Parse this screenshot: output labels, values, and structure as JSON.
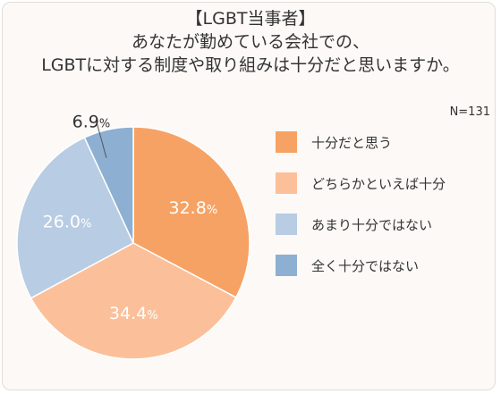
{
  "header": {
    "title_line1": "【LGBT当事者】",
    "title_line2": "あなたが勤めている会社での、",
    "title_line3": "LGBTに対する制度や取り組みは十分だと思いますか。"
  },
  "sample_label": "N=131",
  "colors": {
    "background": "#fcf9f6",
    "text": "#333333",
    "label_on_slice": "#ffffff"
  },
  "chart_data": {
    "type": "pie",
    "categories": [
      "十分だと思う",
      "どちらかといえば十分",
      "あまり十分ではない",
      "全く十分ではない"
    ],
    "values": [
      32.8,
      34.4,
      26.0,
      6.9
    ],
    "value_labels": [
      "32.8",
      "34.4",
      "26.0",
      "6.9"
    ],
    "unit": "%",
    "colors": [
      "#f6a264",
      "#fbc09a",
      "#b8cce3",
      "#8dafd2"
    ],
    "start_angle_deg": 0,
    "direction": "clockwise",
    "legend_position": "right"
  }
}
